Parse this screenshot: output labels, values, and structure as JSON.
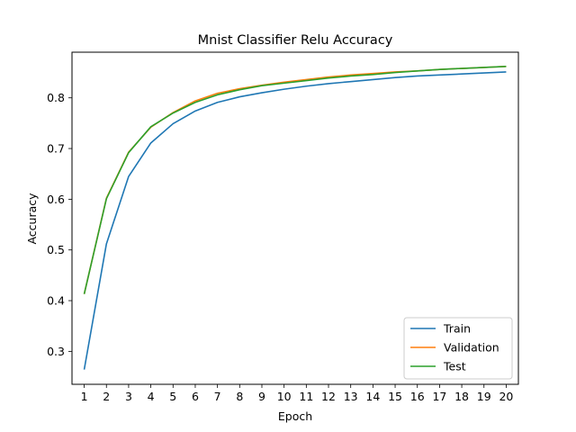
{
  "chart_data": {
    "type": "line",
    "title": "Mnist Classifier Relu Accuracy",
    "xlabel": "Epoch",
    "ylabel": "Accuracy",
    "x": [
      1,
      2,
      3,
      4,
      5,
      6,
      7,
      8,
      9,
      10,
      11,
      12,
      13,
      14,
      15,
      16,
      17,
      18,
      19,
      20
    ],
    "xlim": [
      0.45,
      20.55
    ],
    "ylim": [
      0.235,
      0.89
    ],
    "xticks": [
      "1",
      "2",
      "3",
      "4",
      "5",
      "6",
      "7",
      "8",
      "9",
      "10",
      "11",
      "12",
      "13",
      "14",
      "15",
      "16",
      "17",
      "18",
      "19",
      "20"
    ],
    "yticks": [
      "0.3",
      "0.4",
      "0.5",
      "0.6",
      "0.7",
      "0.8"
    ],
    "ytick_values": [
      0.3,
      0.4,
      0.5,
      0.6,
      0.7,
      0.8
    ],
    "grid": false,
    "legend_position": "lower-right",
    "series": [
      {
        "name": "Train",
        "color": "#1f77b4",
        "values": [
          0.264,
          0.512,
          0.645,
          0.711,
          0.749,
          0.774,
          0.791,
          0.802,
          0.81,
          0.817,
          0.823,
          0.828,
          0.832,
          0.836,
          0.84,
          0.843,
          0.845,
          0.847,
          0.849,
          0.851
        ]
      },
      {
        "name": "Validation",
        "color": "#ff7f0e",
        "values": [
          0.413,
          0.602,
          0.693,
          0.742,
          0.771,
          0.794,
          0.809,
          0.818,
          0.825,
          0.831,
          0.836,
          0.841,
          0.845,
          0.848,
          0.851,
          0.853,
          0.856,
          0.858,
          0.86,
          0.862
        ]
      },
      {
        "name": "Test",
        "color": "#2ca02c",
        "values": [
          0.413,
          0.601,
          0.692,
          0.743,
          0.77,
          0.791,
          0.806,
          0.816,
          0.824,
          0.829,
          0.834,
          0.839,
          0.843,
          0.846,
          0.85,
          0.853,
          0.856,
          0.858,
          0.86,
          0.862
        ]
      }
    ]
  }
}
